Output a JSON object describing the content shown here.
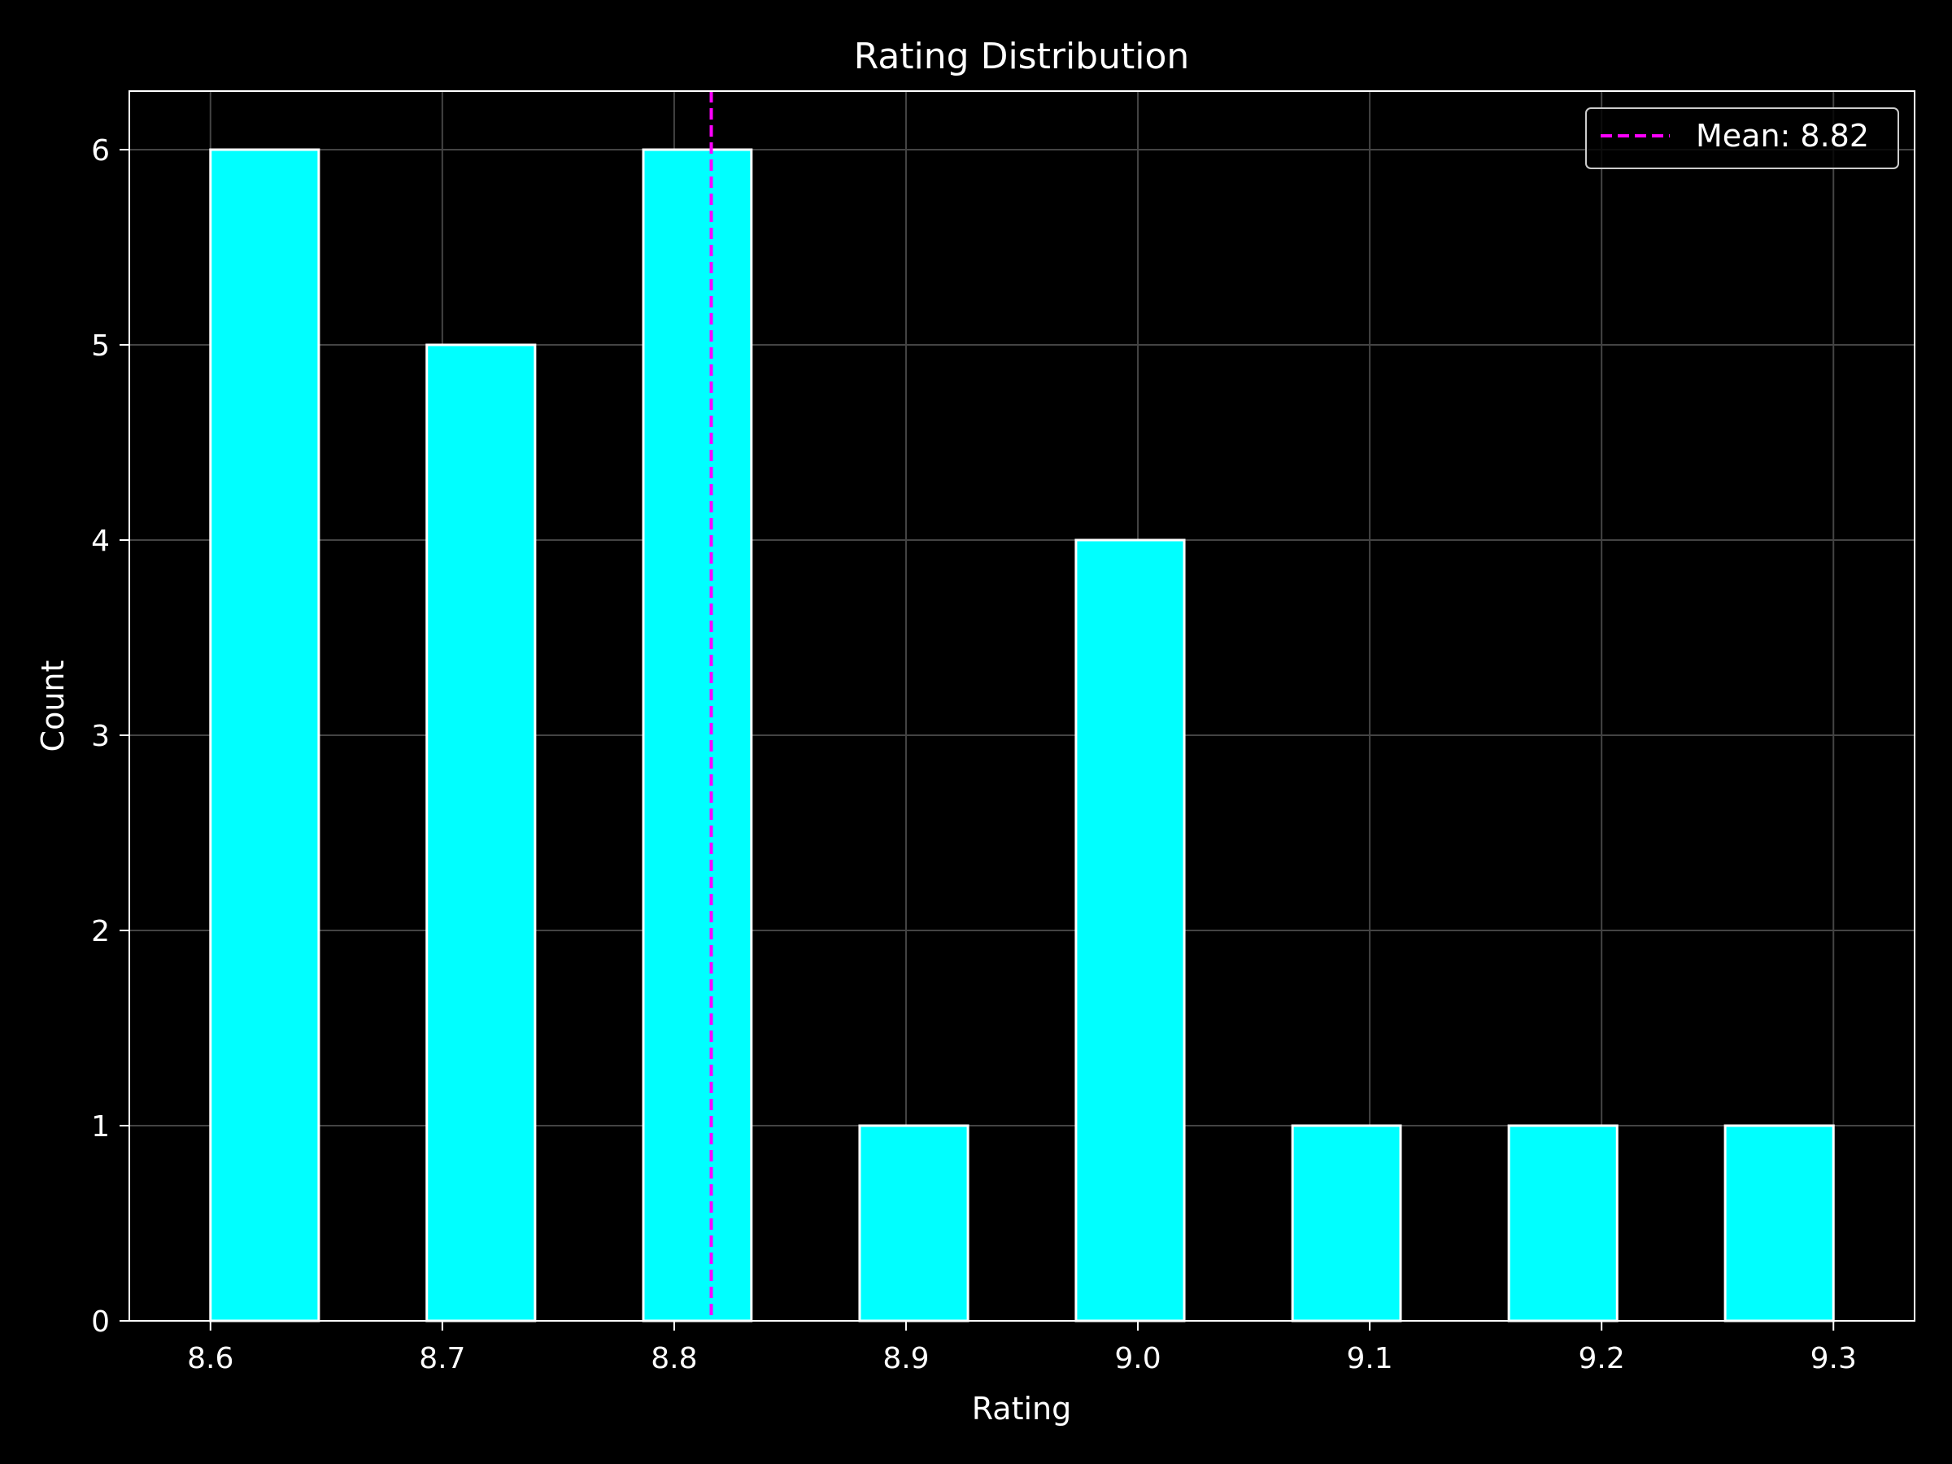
{
  "chart_data": {
    "type": "bar",
    "title": "Rating Distribution",
    "xlabel": "Rating",
    "ylabel": "Count",
    "xlim": [
      8.565,
      9.335
    ],
    "ylim": [
      0,
      6.3
    ],
    "x_ticks": [
      "8.6",
      "8.7",
      "8.8",
      "8.9",
      "9.0",
      "9.1",
      "9.2",
      "9.3"
    ],
    "x_tick_values": [
      8.6,
      8.7,
      8.8,
      8.9,
      9.0,
      9.1,
      9.2,
      9.3
    ],
    "y_ticks": [
      "0",
      "1",
      "2",
      "3",
      "4",
      "5",
      "6"
    ],
    "y_tick_values": [
      0,
      1,
      2,
      3,
      4,
      5,
      6
    ],
    "bins": [
      {
        "x0": 8.6,
        "x1": 8.6467,
        "count": 6
      },
      {
        "x0": 8.6933,
        "x1": 8.74,
        "count": 5
      },
      {
        "x0": 8.7867,
        "x1": 8.8333,
        "count": 6
      },
      {
        "x0": 8.88,
        "x1": 8.9267,
        "count": 1
      },
      {
        "x0": 8.9733,
        "x1": 9.02,
        "count": 4
      },
      {
        "x0": 9.0667,
        "x1": 9.1133,
        "count": 1
      },
      {
        "x0": 9.16,
        "x1": 9.2067,
        "count": 1
      },
      {
        "x0": 9.2533,
        "x1": 9.3,
        "count": 1
      }
    ],
    "mean": 8.816,
    "legend": {
      "label": "Mean: 8.82",
      "placement": "top-right"
    },
    "grid": true,
    "colors": {
      "background": "#000000",
      "bar_fill": "#00ffff",
      "bar_edge": "#ffffff",
      "mean_line": "#ff00ff",
      "grid": "#444444",
      "text": "#ffffff"
    }
  }
}
